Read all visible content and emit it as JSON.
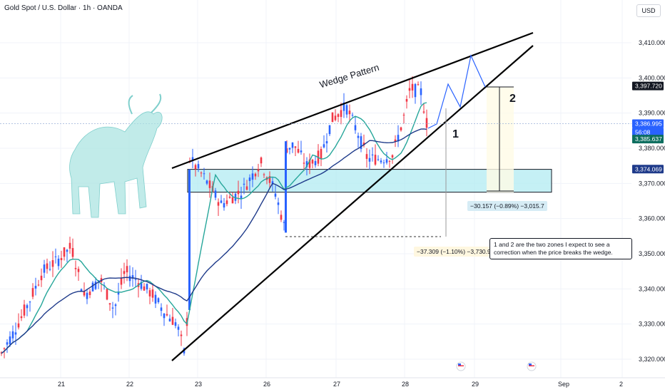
{
  "header": {
    "title": "Gold Spot / U.S. Dollar · 1h · OANDA",
    "currency": "USD"
  },
  "colors": {
    "up": "#2962ff",
    "down": "#f23645",
    "ma_fast": "#26a69a",
    "ma_slow": "#1e3a8a",
    "zone_fill": "#b2ebf2",
    "annotation_bg": "#fff7e0",
    "crosshair": "#9ab0d8"
  },
  "chart_data": {
    "type": "candlestick",
    "ylim": [
      3316,
      3423
    ],
    "y_ticks": [
      "3,320.000",
      "3,330.000",
      "3,340.000",
      "3,350.000",
      "3,360.000",
      "3,370.000",
      "3,380.000",
      "3,390.000",
      "3,400.000",
      "3,410.000"
    ],
    "x_ticks": [
      "21",
      "22",
      "23",
      "26",
      "27",
      "28",
      "29",
      "Sep",
      "2"
    ],
    "price_tags": [
      {
        "value": "3,397.720",
        "price": 3397.72,
        "style": "dark"
      },
      {
        "value": "3,386.995",
        "price": 3386.995,
        "style": "blue"
      },
      {
        "value": "56:08",
        "price": 3384.6,
        "style": "blue"
      },
      {
        "value": "3,385.637",
        "price": 3382.6,
        "style": "green"
      },
      {
        "value": "3,374.069",
        "price": 3374.069,
        "style": "navy"
      }
    ],
    "annotations": {
      "pattern_label": "Wedge Pattern",
      "zone_1_label": "1",
      "zone_2_label": "2",
      "measure_1": "−37.309 (−1.10%) −3,730.9",
      "measure_2": "−30.157 (−0.89%) −3,015.7",
      "callout": "1 and 2 are the two zones I expect to see a correction when the price breaks the wedge."
    },
    "support_zone": [
      3367.5,
      3374.0
    ]
  }
}
